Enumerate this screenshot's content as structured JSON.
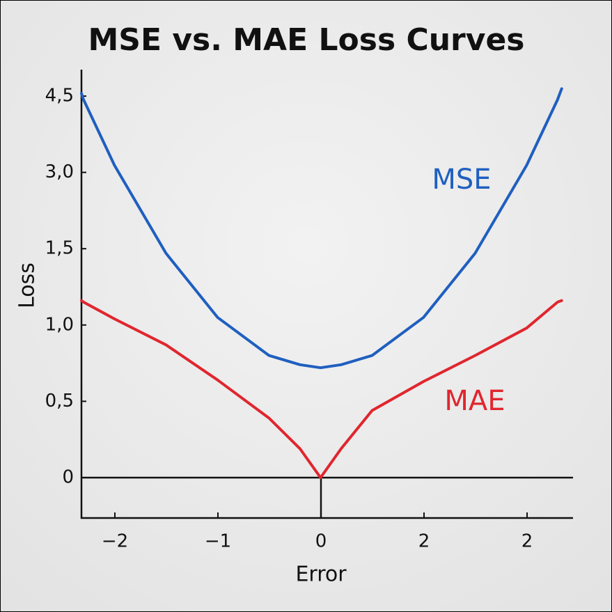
{
  "chart_data": {
    "type": "line",
    "title": "MSE vs. MAE Loss Curves",
    "x_label": "Error",
    "y_label": "Loss",
    "x": [
      -2.32,
      -2.3,
      -2,
      -1.5,
      -1,
      -0.5,
      -0.2,
      0,
      0.2,
      0.5,
      1,
      1.5,
      2,
      2.3,
      2.34
    ],
    "series": [
      {
        "name": "MSE",
        "color": "#1f5fbf",
        "values": [
          4.55,
          4.43,
          3.14,
          1.47,
          1.05,
          0.8,
          0.74,
          0.72,
          0.74,
          0.8,
          1.05,
          1.47,
          3.14,
          4.43,
          4.64
        ]
      },
      {
        "name": "MAE",
        "color": "#e0262e",
        "values": [
          1.16,
          1.15,
          1.04,
          0.87,
          0.64,
          0.39,
          0.19,
          0,
          0.19,
          0.44,
          0.63,
          0.8,
          0.98,
          1.15,
          1.16
        ]
      }
    ],
    "xlim": [
      -2.32,
      2.45
    ],
    "xtick_labels": [
      "−2",
      "−1",
      "0",
      "2",
      "2"
    ],
    "ylim": [
      -0.26,
      5.0
    ],
    "yticks": [
      0,
      {
        "value": 0.5,
        "label": "0,5"
      },
      {
        "value": 1.0,
        "label": "1,0"
      },
      {
        "value": 1.5,
        "label": "1,5"
      },
      {
        "value": 3.0,
        "label": "3,0"
      },
      {
        "value": 4.5,
        "label": "4,5"
      }
    ]
  }
}
